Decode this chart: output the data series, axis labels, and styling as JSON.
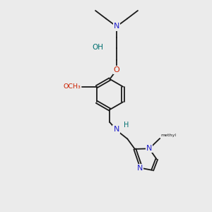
{
  "bg_color": "#ebebeb",
  "bond_color": "#1a1a1a",
  "N_color": "#2020cc",
  "O_color": "#cc2000",
  "H_color": "#007070",
  "lw": 1.3,
  "figsize": [
    3.0,
    3.0
  ],
  "dpi": 100,
  "xlim": [
    0,
    10
  ],
  "ylim": [
    0,
    10
  ]
}
